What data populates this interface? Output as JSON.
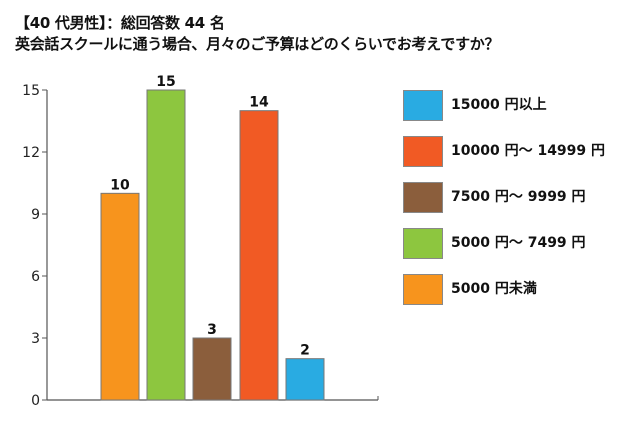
{
  "header": {
    "line1": "【40 代男性】：総回答数 44 名",
    "line2": "英会話スクールに通う場合、月々のご予算はどのくらいでお考えですか？"
  },
  "chart_data": {
    "type": "bar",
    "title": "【40 代男性】：総回答数 44 名 英会話スクールに通う場合、月々のご予算はどのくらいでお考えですか？",
    "categories": [
      "5000 円未満",
      "5000 円～ 7499 円",
      "7500 円～ 9999 円",
      "10000 円～ 14999 円",
      "15000 円以上"
    ],
    "values": [
      10,
      15,
      3,
      14,
      2
    ],
    "colors": [
      "#f7941d",
      "#8dc63f",
      "#8b5e3c",
      "#f15a24",
      "#29abe2"
    ],
    "ylim": [
      0,
      15
    ],
    "yticks": [
      "0",
      "3",
      "6",
      "9",
      "12",
      "15"
    ],
    "grid": false,
    "legend_position": "right",
    "legend": [
      {
        "label": "15000 円以上",
        "color": "#29abe2"
      },
      {
        "label": "10000 円～ 14999 円",
        "color": "#f15a24"
      },
      {
        "label": "7500 円～ 9999 円",
        "color": "#8b5e3c"
      },
      {
        "label": "5000 円～ 7499 円",
        "color": "#8dc63f"
      },
      {
        "label": "5000 円未満",
        "color": "#f7941d"
      }
    ]
  }
}
